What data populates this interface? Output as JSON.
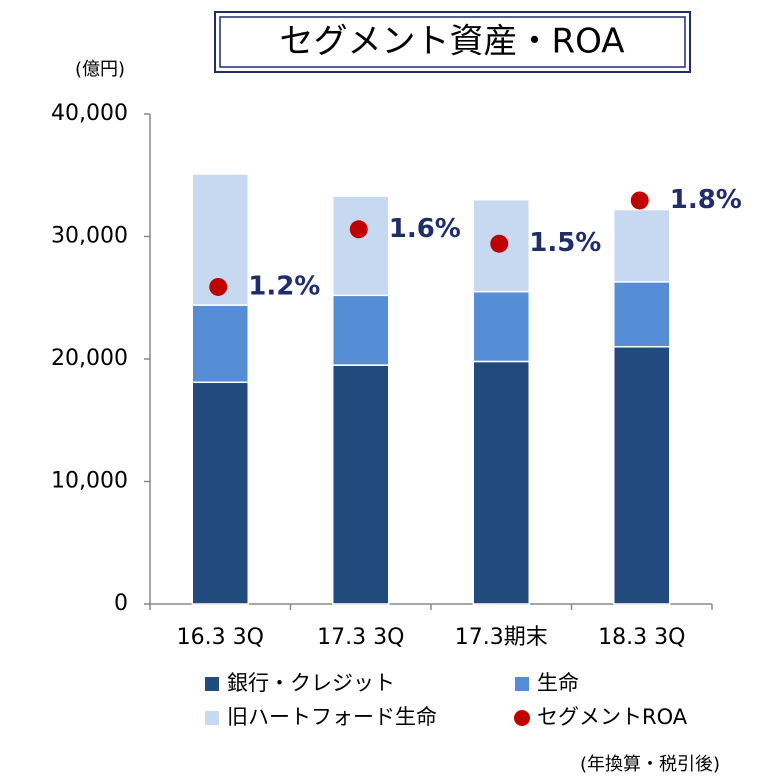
{
  "chart_data": {
    "type": "bar",
    "stacked": true,
    "title": "セグメント資産・ROA",
    "y_label": "(億円)",
    "note": "(年換算・税引後)",
    "categories": [
      "16.3 3Q",
      "17.3 3Q",
      "17.3期末",
      "18.3 3Q"
    ],
    "series": [
      {
        "name": "銀行・クレジット",
        "color": "#234a7c",
        "values": [
          18100,
          19500,
          19800,
          21000
        ]
      },
      {
        "name": "生命",
        "color": "#558ed5",
        "values": [
          6300,
          5700,
          5700,
          5300
        ]
      },
      {
        "name": "旧ハートフォード生命",
        "color": "#c6d9f1",
        "values": [
          10700,
          8100,
          7500,
          5900
        ]
      },
      {
        "name": "セグメントROA",
        "color": "#c00000",
        "type": "scatter",
        "axis": "y2",
        "values": [
          1.2,
          1.6,
          1.5,
          1.8
        ],
        "value_labels": [
          "1.2%",
          "1.6%",
          "1.5%",
          "1.8%"
        ]
      }
    ],
    "ylim": [
      0,
      40000
    ],
    "yticks": [
      0,
      {
        "value": 10000,
        "label": "10,000"
      },
      {
        "value": 20000,
        "label": "20,000"
      },
      {
        "value": 30000,
        "label": "30,000"
      },
      {
        "value": 40000,
        "label": "40,000"
      }
    ],
    "y2lim": [
      -1,
      2.4
    ],
    "grid": false
  }
}
